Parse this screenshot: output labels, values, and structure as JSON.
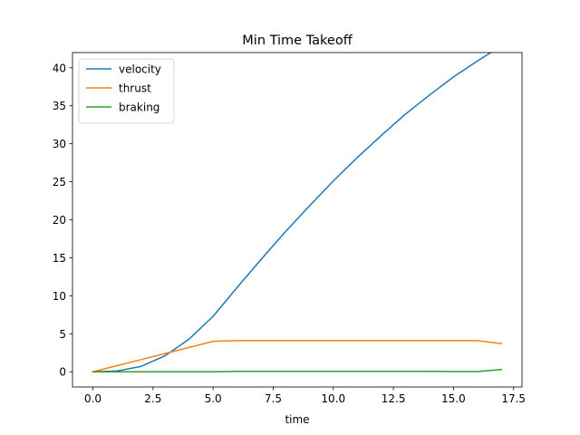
{
  "chart_data": {
    "type": "line",
    "title": "Min Time Takeoff",
    "xlabel": "time",
    "ylabel": "",
    "xlim": [
      -0.85,
      17.85
    ],
    "ylim": [
      -2.0,
      42.0
    ],
    "xticks": [
      0.0,
      2.5,
      5.0,
      7.5,
      10.0,
      12.5,
      15.0,
      17.5
    ],
    "xtick_labels": [
      "0.0",
      "2.5",
      "5.0",
      "7.5",
      "10.0",
      "12.5",
      "15.0",
      "17.5"
    ],
    "yticks": [
      0,
      5,
      10,
      15,
      20,
      25,
      30,
      35,
      40
    ],
    "ytick_labels": [
      "0",
      "5",
      "10",
      "15",
      "20",
      "25",
      "30",
      "35",
      "40"
    ],
    "grid": false,
    "legend_position": "top-left",
    "x": [
      0,
      1,
      2,
      3,
      4,
      5,
      6,
      7,
      8,
      9,
      10,
      11,
      12,
      13,
      14,
      15,
      16,
      17
    ],
    "series": [
      {
        "name": "velocity",
        "color": "#1f77b4",
        "values": [
          0,
          0.1,
          0.7,
          2.1,
          4.3,
          7.3,
          11.1,
          14.8,
          18.4,
          21.8,
          25.1,
          28.2,
          31.1,
          33.9,
          36.4,
          38.8,
          40.9,
          42.9
        ]
      },
      {
        "name": "thrust",
        "color": "#ff7f0e",
        "values": [
          0,
          0.8,
          1.6,
          2.4,
          3.2,
          4.0,
          4.1,
          4.1,
          4.1,
          4.1,
          4.1,
          4.1,
          4.1,
          4.1,
          4.1,
          4.1,
          4.1,
          3.7
        ]
      },
      {
        "name": "braking",
        "color": "#2ca02c",
        "values": [
          0,
          0,
          0,
          0,
          0,
          0,
          0.05,
          0.05,
          0.05,
          0.05,
          0.05,
          0.05,
          0.05,
          0.05,
          0.05,
          0.03,
          0.03,
          0.3
        ]
      }
    ]
  }
}
